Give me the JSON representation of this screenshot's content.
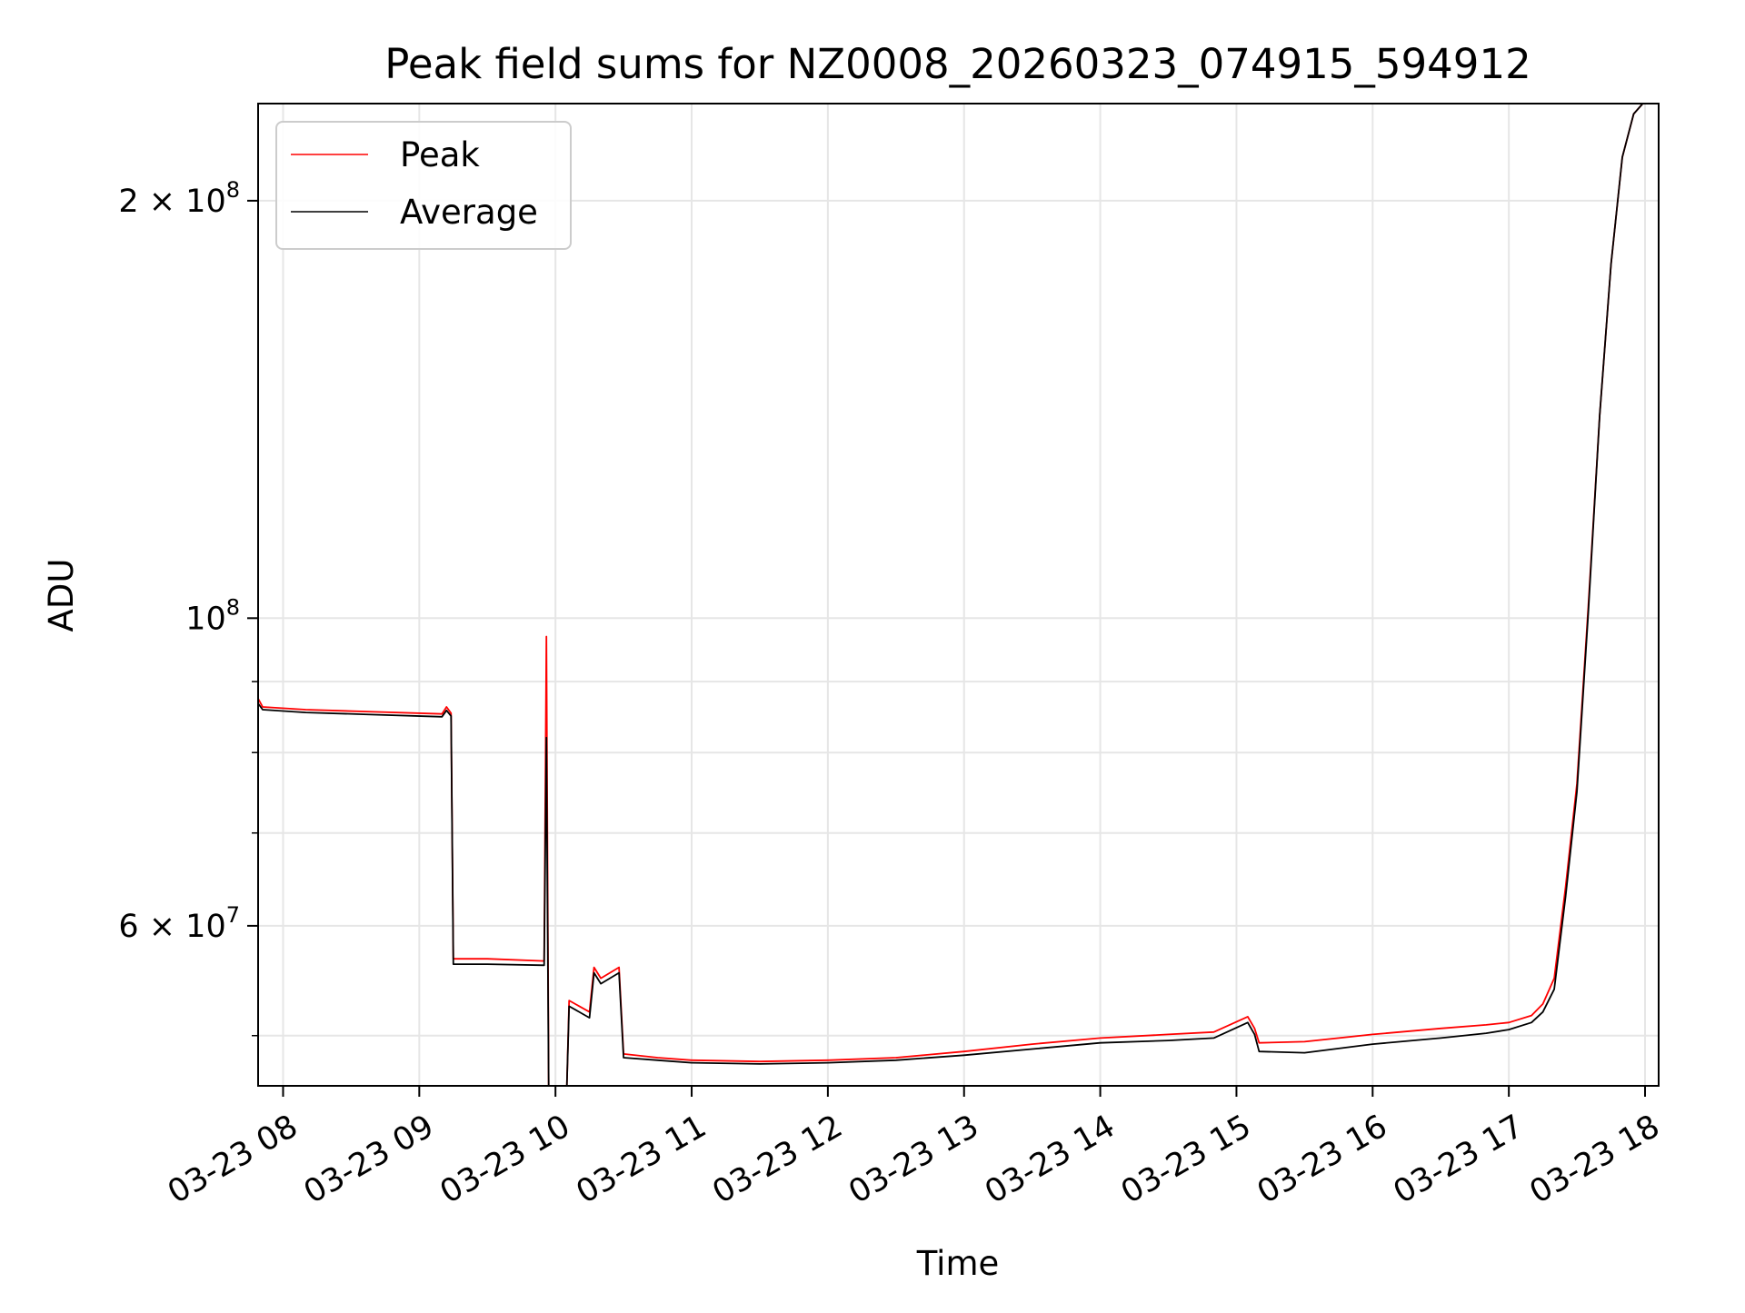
{
  "chart_data": {
    "type": "line",
    "title": "Peak field sums for NZ0008_20260323_074915_594912",
    "xlabel": "Time",
    "ylabel": "ADU",
    "y_scale": "log",
    "grid": true,
    "legend_position": "top-left",
    "xlim": [
      "2026-03-23 07:49",
      "2026-03-23 18:06"
    ],
    "ylim": [
      46000000,
      235000000
    ],
    "x_ticks": [
      {
        "value": "2026-03-23 08:00",
        "label": "03-23 08"
      },
      {
        "value": "2026-03-23 09:00",
        "label": "03-23 09"
      },
      {
        "value": "2026-03-23 10:00",
        "label": "03-23 10"
      },
      {
        "value": "2026-03-23 11:00",
        "label": "03-23 11"
      },
      {
        "value": "2026-03-23 12:00",
        "label": "03-23 12"
      },
      {
        "value": "2026-03-23 13:00",
        "label": "03-23 13"
      },
      {
        "value": "2026-03-23 14:00",
        "label": "03-23 14"
      },
      {
        "value": "2026-03-23 15:00",
        "label": "03-23 15"
      },
      {
        "value": "2026-03-23 16:00",
        "label": "03-23 16"
      },
      {
        "value": "2026-03-23 17:00",
        "label": "03-23 17"
      },
      {
        "value": "2026-03-23 18:00",
        "label": "03-23 18"
      }
    ],
    "y_major_ticks": [
      {
        "value": 60000000,
        "base": "6 × 10",
        "exp": "7"
      },
      {
        "value": 100000000,
        "base": "10",
        "exp": "8"
      },
      {
        "value": 200000000,
        "base": "2 × 10",
        "exp": "8"
      }
    ],
    "y_minor_ticks": [
      50000000,
      70000000,
      80000000,
      90000000
    ],
    "series": [
      {
        "name": "Peak",
        "color": "#ff0000",
        "x": [
          "2026-03-23 07:49",
          "2026-03-23 07:51",
          "2026-03-23 08:10",
          "2026-03-23 08:40",
          "2026-03-23 09:10",
          "2026-03-23 09:12",
          "2026-03-23 09:14",
          "2026-03-23 09:15",
          "2026-03-23 09:30",
          "2026-03-23 09:55",
          "2026-03-23 09:56",
          "2026-03-23 09:57",
          "2026-03-23 10:05",
          "2026-03-23 10:06",
          "2026-03-23 10:15",
          "2026-03-23 10:17",
          "2026-03-23 10:20",
          "2026-03-23 10:28",
          "2026-03-23 10:30",
          "2026-03-23 10:45",
          "2026-03-23 11:00",
          "2026-03-23 11:30",
          "2026-03-23 12:00",
          "2026-03-23 12:30",
          "2026-03-23 13:00",
          "2026-03-23 13:30",
          "2026-03-23 14:00",
          "2026-03-23 14:30",
          "2026-03-23 14:50",
          "2026-03-23 15:05",
          "2026-03-23 15:08",
          "2026-03-23 15:10",
          "2026-03-23 15:30",
          "2026-03-23 16:00",
          "2026-03-23 16:30",
          "2026-03-23 16:50",
          "2026-03-23 17:00",
          "2026-03-23 17:10",
          "2026-03-23 17:15",
          "2026-03-23 17:20",
          "2026-03-23 17:25",
          "2026-03-23 17:30",
          "2026-03-23 17:35",
          "2026-03-23 17:40",
          "2026-03-23 17:45",
          "2026-03-23 17:50",
          "2026-03-23 17:55",
          "2026-03-23 17:59"
        ],
        "values": [
          87500000,
          86300000,
          85900000,
          85600000,
          85300000,
          86300000,
          85400000,
          56800000,
          56800000,
          56600000,
          97000000,
          46000000,
          46000000,
          53000000,
          52000000,
          56000000,
          55000000,
          56000000,
          48500000,
          48200000,
          48000000,
          47900000,
          48000000,
          48200000,
          48700000,
          49300000,
          49800000,
          50100000,
          50300000,
          51600000,
          50600000,
          49400000,
          49500000,
          50100000,
          50600000,
          50900000,
          51100000,
          51700000,
          52700000,
          55000000,
          64000000,
          76000000,
          102000000,
          140000000,
          180000000,
          215000000,
          231000000,
          235000000
        ]
      },
      {
        "name": "Average",
        "color": "#000000",
        "x": [
          "2026-03-23 07:49",
          "2026-03-23 07:51",
          "2026-03-23 08:10",
          "2026-03-23 08:40",
          "2026-03-23 09:10",
          "2026-03-23 09:12",
          "2026-03-23 09:14",
          "2026-03-23 09:15",
          "2026-03-23 09:30",
          "2026-03-23 09:55",
          "2026-03-23 09:56",
          "2026-03-23 09:57",
          "2026-03-23 10:05",
          "2026-03-23 10:06",
          "2026-03-23 10:15",
          "2026-03-23 10:17",
          "2026-03-23 10:20",
          "2026-03-23 10:28",
          "2026-03-23 10:30",
          "2026-03-23 10:45",
          "2026-03-23 11:00",
          "2026-03-23 11:30",
          "2026-03-23 12:00",
          "2026-03-23 12:30",
          "2026-03-23 13:00",
          "2026-03-23 13:30",
          "2026-03-23 14:00",
          "2026-03-23 14:30",
          "2026-03-23 14:50",
          "2026-03-23 15:05",
          "2026-03-23 15:08",
          "2026-03-23 15:10",
          "2026-03-23 15:30",
          "2026-03-23 16:00",
          "2026-03-23 16:30",
          "2026-03-23 16:50",
          "2026-03-23 17:00",
          "2026-03-23 17:10",
          "2026-03-23 17:15",
          "2026-03-23 17:20",
          "2026-03-23 17:25",
          "2026-03-23 17:30",
          "2026-03-23 17:35",
          "2026-03-23 17:40",
          "2026-03-23 17:45",
          "2026-03-23 17:50",
          "2026-03-23 17:55",
          "2026-03-23 17:59"
        ],
        "values": [
          86800000,
          85900000,
          85500000,
          85200000,
          84900000,
          85800000,
          85000000,
          56300000,
          56300000,
          56200000,
          82000000,
          46000000,
          46000000,
          52500000,
          51500000,
          55500000,
          54500000,
          55500000,
          48200000,
          48000000,
          47800000,
          47700000,
          47800000,
          48000000,
          48400000,
          48900000,
          49400000,
          49600000,
          49800000,
          51100000,
          50100000,
          48700000,
          48600000,
          49300000,
          49800000,
          50200000,
          50500000,
          51100000,
          52000000,
          54000000,
          63000000,
          75000000,
          101000000,
          140000000,
          180000000,
          215000000,
          231000000,
          235000000
        ]
      }
    ]
  }
}
